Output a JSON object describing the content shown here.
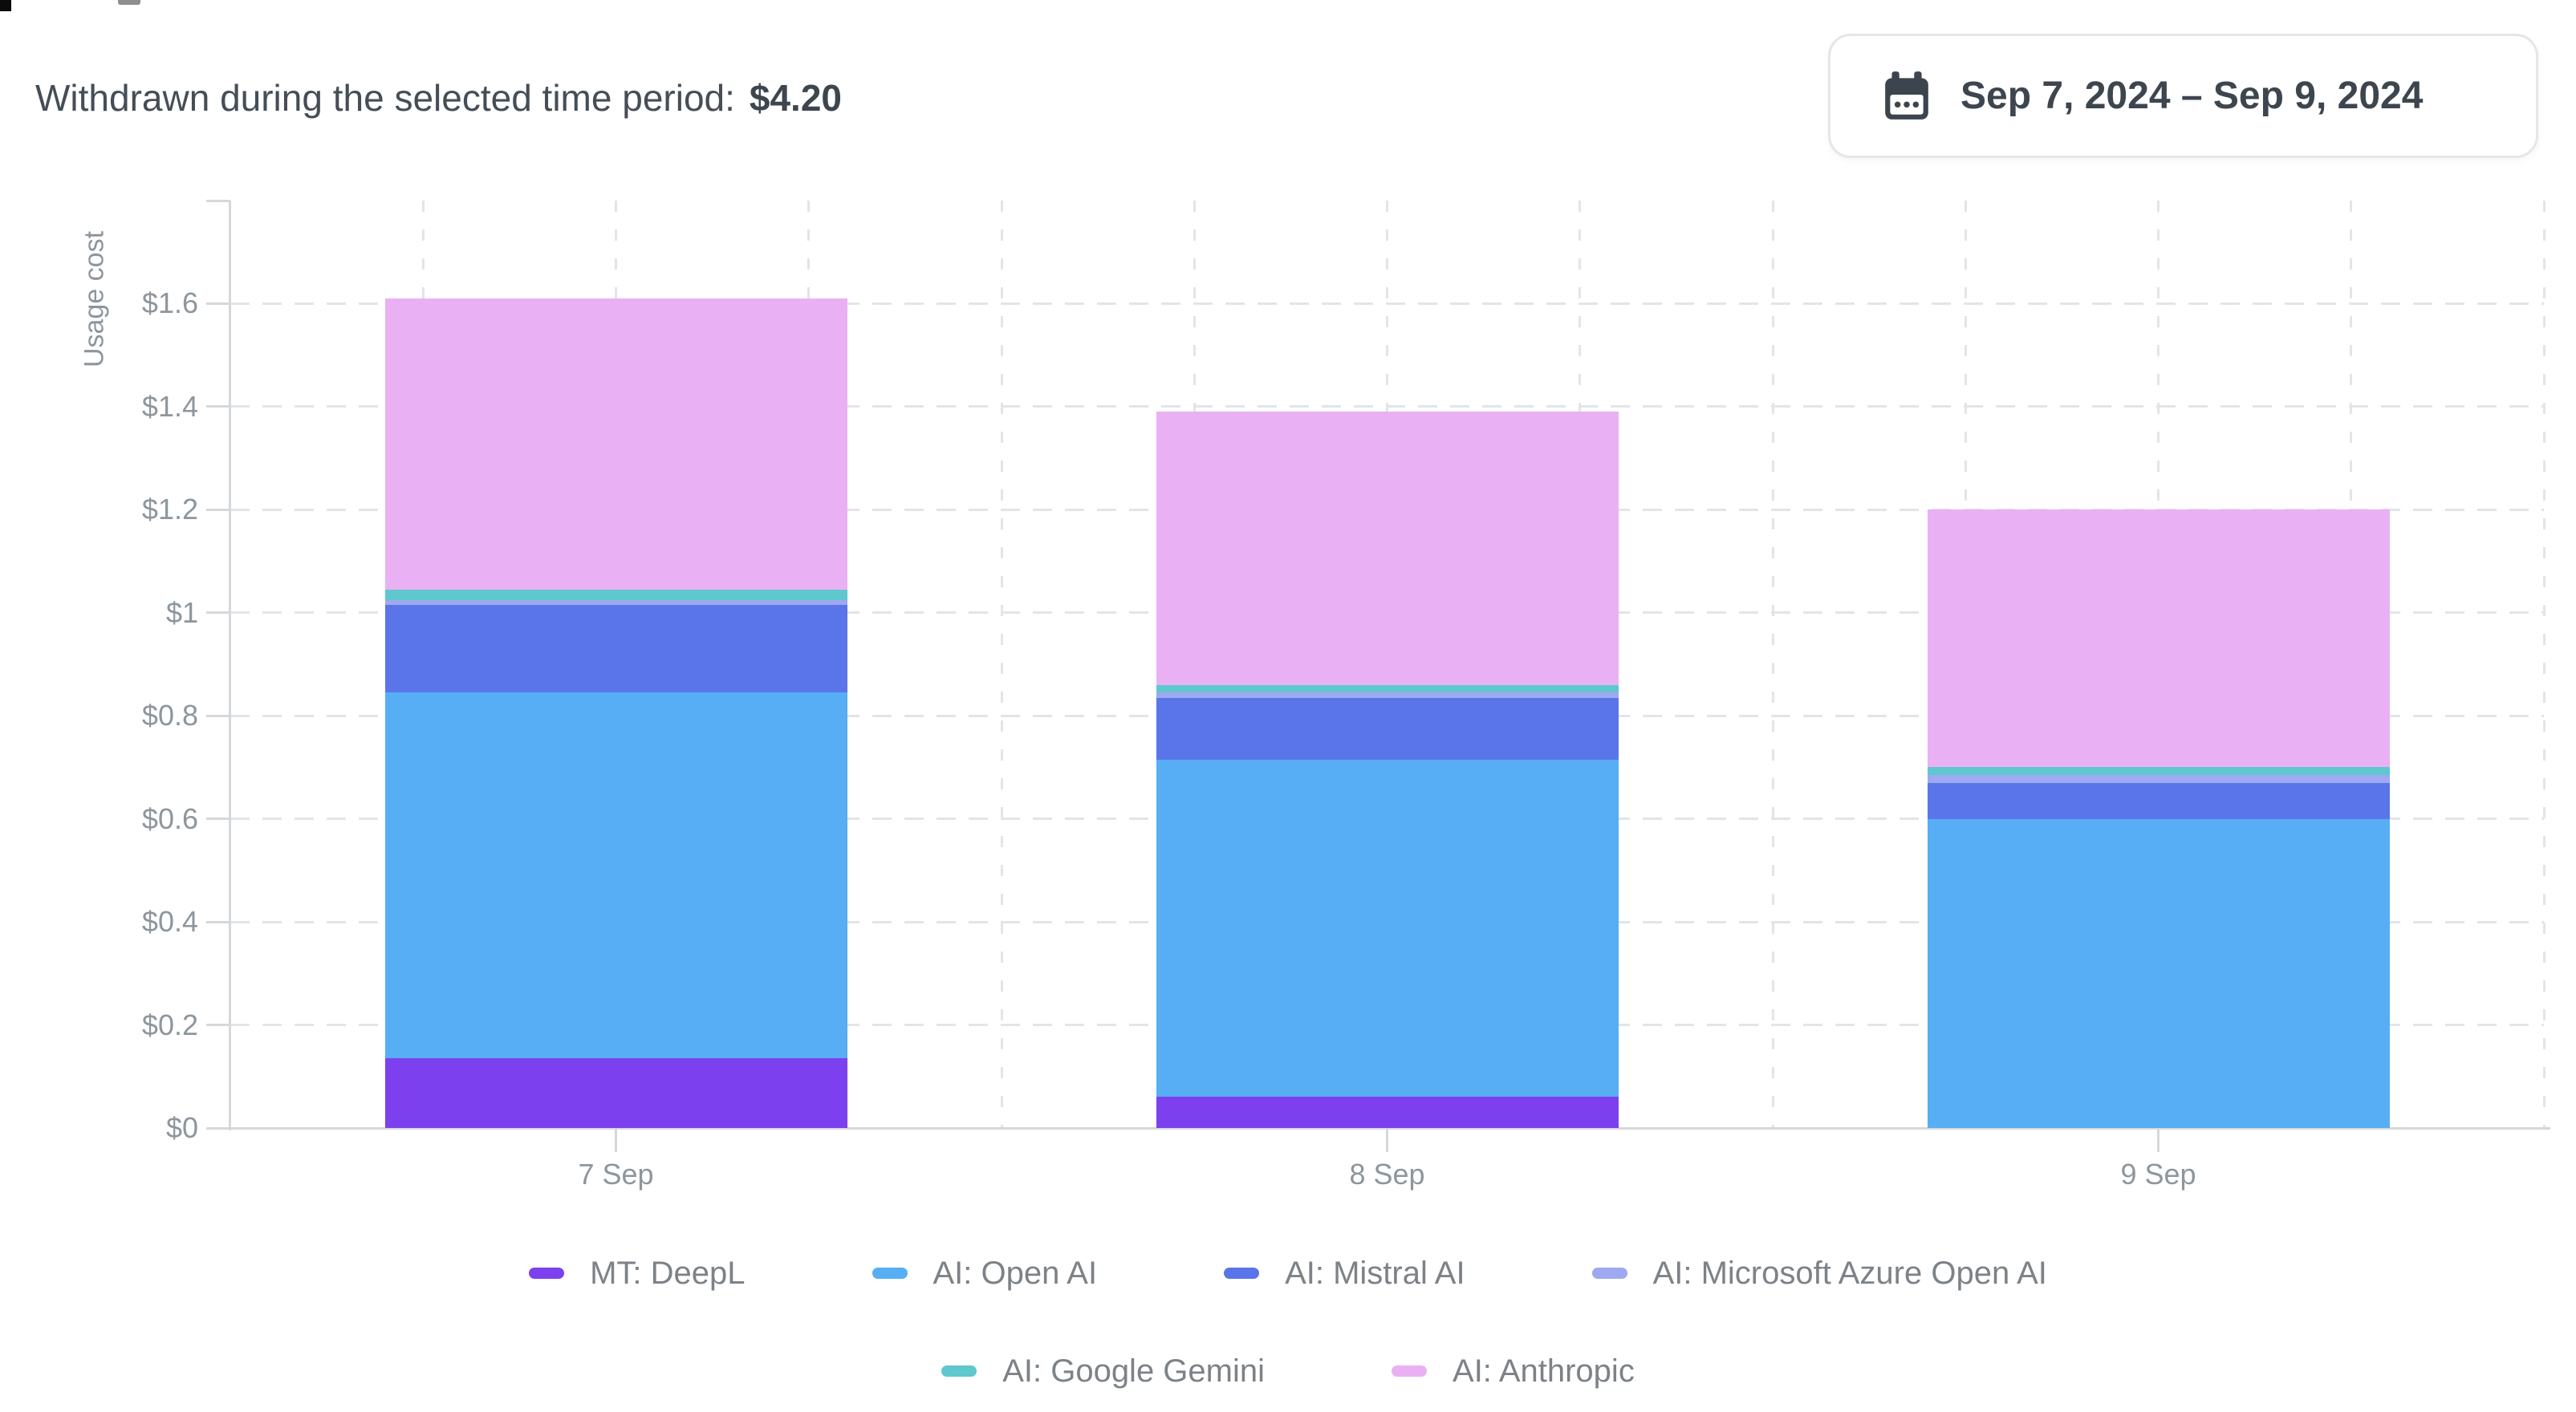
{
  "header": {
    "summary_label": "Withdrawn during the selected time period:",
    "summary_value": "$4.20",
    "date_button": {
      "icon": "calendar-icon",
      "label": "Sep 7, 2024 – Sep 9, 2024"
    }
  },
  "chart_data": {
    "type": "bar",
    "stacked": true,
    "title": "",
    "xlabel": "",
    "ylabel": "Usage cost",
    "categories": [
      "7 Sep",
      "8 Sep",
      "9 Sep"
    ],
    "series": [
      {
        "name": "MT: DeepL",
        "color": "#7d40ee",
        "values": [
          0.135,
          0.06,
          0
        ]
      },
      {
        "name": "AI: Open AI",
        "color": "#57aef5",
        "values": [
          0.71,
          0.655,
          0.6
        ]
      },
      {
        "name": "AI: Mistral AI",
        "color": "#5a75e9",
        "values": [
          0.17,
          0.12,
          0.07
        ]
      },
      {
        "name": "AI: Microsoft Azure Open AI",
        "color": "#9ea9ef",
        "values": [
          0.01,
          0.01,
          0.015
        ]
      },
      {
        "name": "AI: Google Gemini",
        "color": "#5fc7ce",
        "values": [
          0.02,
          0.015,
          0.015
        ]
      },
      {
        "name": "AI: Anthropic",
        "color": "#e9b1f4",
        "values": [
          0.565,
          0.53,
          0.5
        ]
      }
    ],
    "category_totals": [
      1.61,
      1.39,
      1.2
    ],
    "ylim": [
      0,
      1.8
    ],
    "ytick_values": [
      0,
      0.2,
      0.4,
      0.6,
      0.8,
      1.0,
      1.2,
      1.4,
      1.6
    ],
    "ytick_labels": [
      "$0",
      "$0.2",
      "$0.4",
      "$0.6",
      "$0.8",
      "$1",
      "$1.2",
      "$1.4",
      "$1.6"
    ],
    "grid": "dashed",
    "legend_position": "bottom",
    "legend_rows": [
      [
        "MT: DeepL",
        "AI: Open AI",
        "AI: Mistral AI",
        "AI: Microsoft Azure Open AI"
      ],
      [
        "AI: Google Gemini",
        "AI: Anthropic"
      ]
    ]
  }
}
